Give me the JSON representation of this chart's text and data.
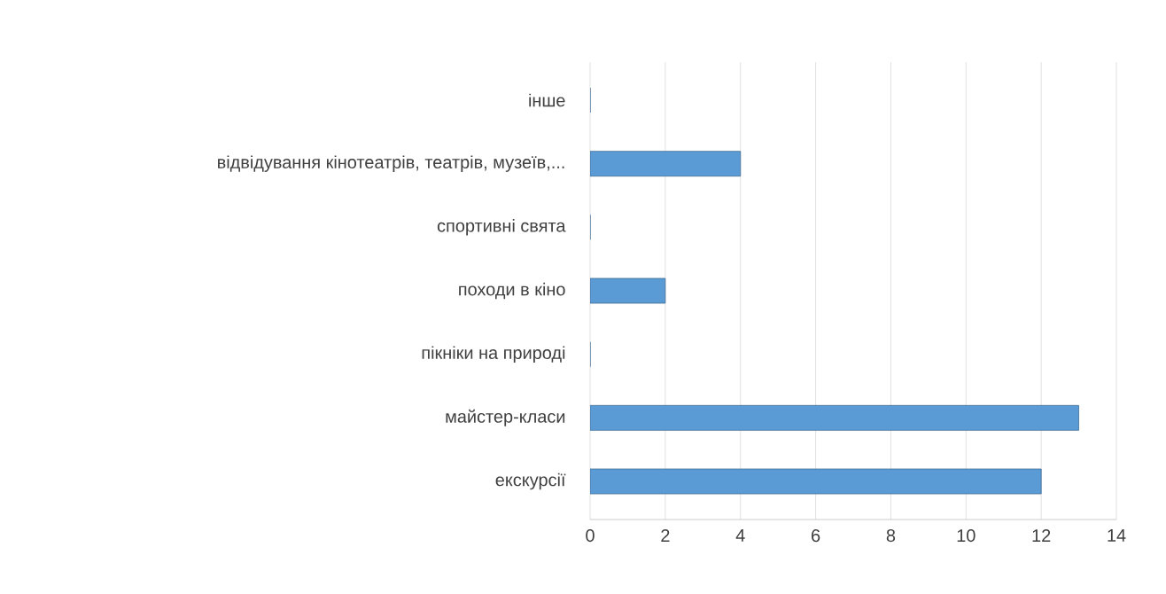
{
  "chart_data": {
    "type": "bar",
    "orientation": "horizontal",
    "categories": [
      "інше",
      "відвідування кінотеатрів, театрів, музеїв,...",
      "спортивні свята",
      "походи в кіно",
      "пікніки на природі",
      "майстер-класи",
      "екскурсії"
    ],
    "values": [
      0,
      4,
      0,
      2,
      0,
      13,
      12
    ],
    "color": "#5b9bd5",
    "xlim": [
      0,
      14
    ],
    "xticks": [
      0,
      2,
      4,
      6,
      8,
      10,
      12,
      14
    ],
    "grid": "x"
  }
}
